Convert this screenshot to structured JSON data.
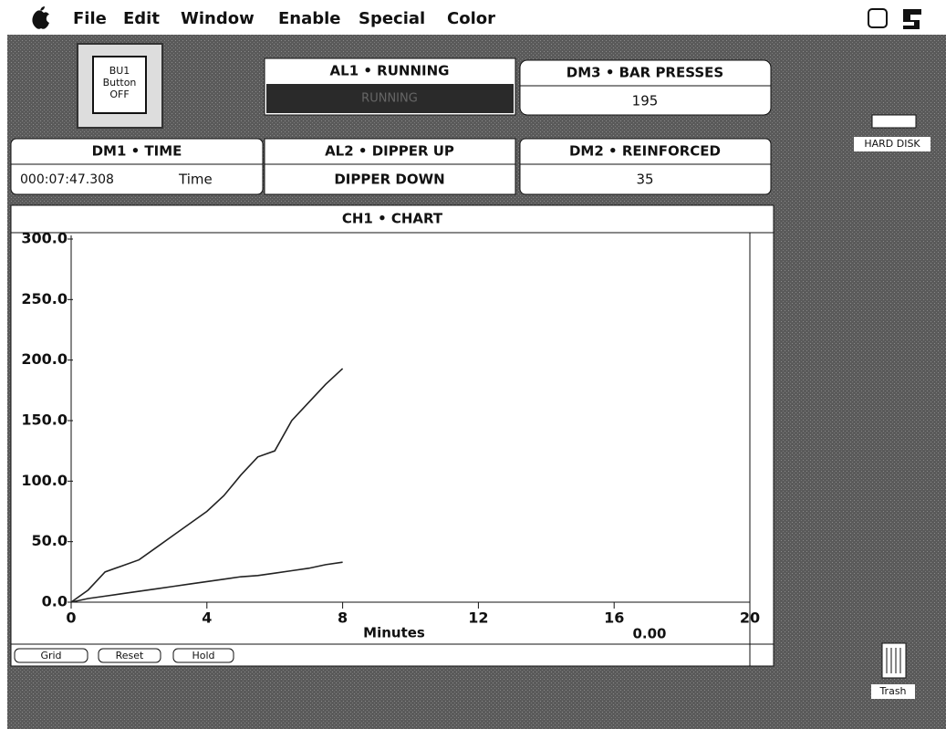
{
  "menu": {
    "items": [
      "File",
      "Edit",
      "Window",
      "Enable",
      "Special",
      "Color"
    ]
  },
  "panels": {
    "bu1": {
      "lines": [
        "BU1",
        "Button",
        "OFF"
      ]
    },
    "al1": {
      "title": "AL1 • RUNNING",
      "value": "RUNNING"
    },
    "dm3": {
      "title": "DM3 • BAR PRESSES",
      "value": 195
    },
    "dm1": {
      "title": "DM1 • TIME",
      "value": "000:07:47.308",
      "unit": "Time"
    },
    "al2": {
      "title": "AL2 • DIPPER UP",
      "value": "DIPPER DOWN"
    },
    "dm2": {
      "title": "DM2 • REINFORCED",
      "value": 35
    }
  },
  "chart": {
    "type": "line",
    "title": "CH1 • CHART",
    "x_label": "Minutes",
    "readout": "0.00",
    "x": [
      0,
      0.5,
      1,
      1.5,
      2,
      2.5,
      3,
      3.5,
      4,
      4.5,
      5,
      5.5,
      6,
      6.5,
      7,
      7.5,
      8
    ],
    "series": [
      {
        "color": "#222222",
        "values": [
          0,
          10,
          25,
          30,
          35,
          45,
          55,
          65,
          75,
          88,
          105,
          120,
          125,
          150,
          165,
          180,
          193
        ]
      },
      {
        "color": "#222222",
        "values": [
          0,
          3,
          5,
          7,
          9,
          11,
          13,
          15,
          17,
          19,
          21,
          22,
          24,
          26,
          28,
          31,
          33
        ]
      }
    ],
    "xlim": [
      0,
      20
    ],
    "xticks": [
      0,
      4,
      8,
      12,
      16,
      20
    ],
    "ylim": [
      0,
      300
    ],
    "yticks": [
      {
        "value": 0,
        "label": "0.0"
      },
      {
        "value": 50,
        "label": "50.0"
      },
      {
        "value": 100,
        "label": "100.0"
      },
      {
        "value": 150,
        "label": "150.0"
      },
      {
        "value": 200,
        "label": "200.0"
      },
      {
        "value": 250,
        "label": "250.0"
      },
      {
        "value": 300,
        "label": "300.0"
      }
    ],
    "buttons": [
      "Grid",
      "Reset",
      "Hold"
    ]
  },
  "desktop": {
    "disk": "HARD DISK",
    "trash": "Trash"
  }
}
